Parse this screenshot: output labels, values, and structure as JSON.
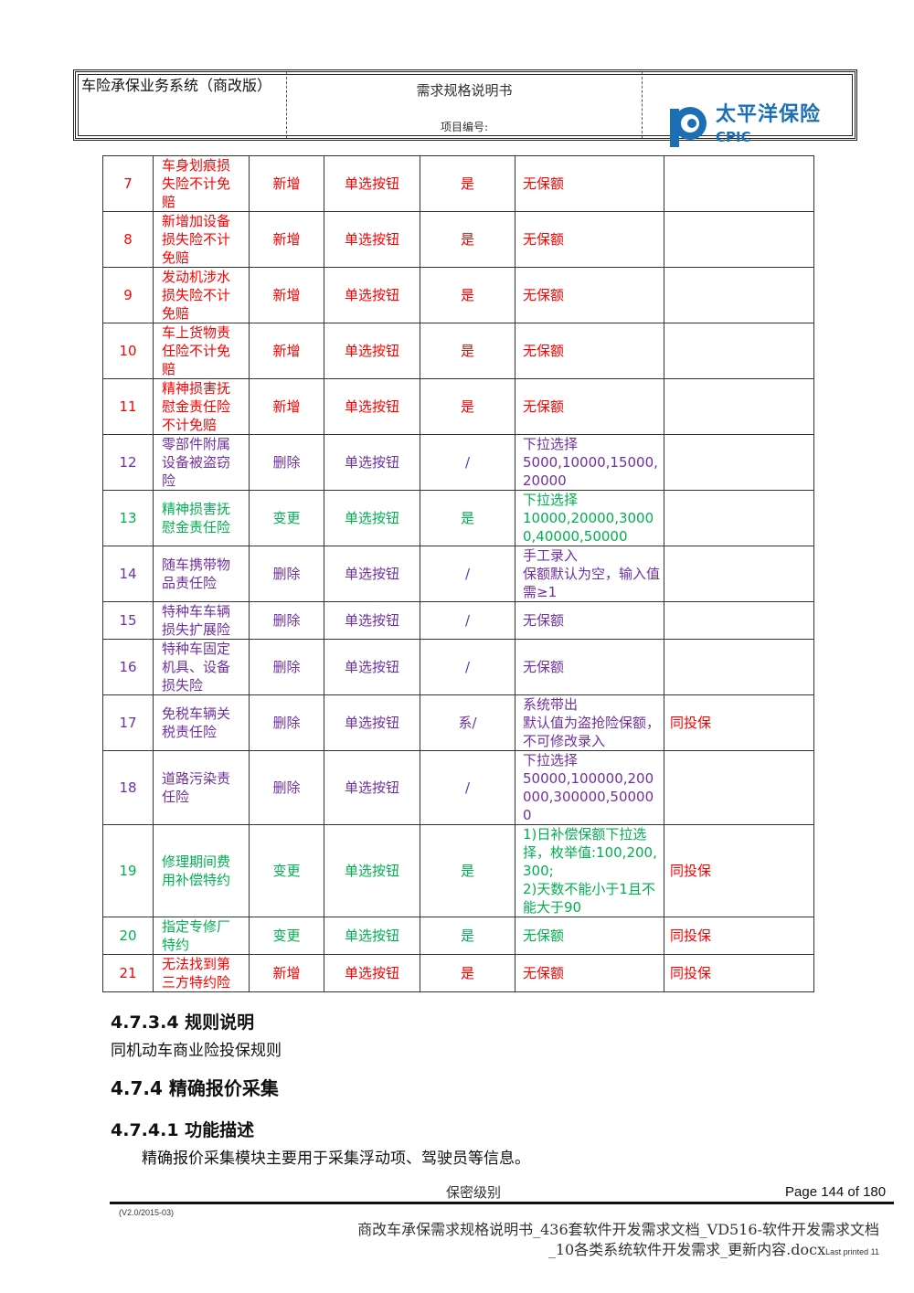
{
  "header": {
    "system": "车险承保业务系统（商改版）",
    "doc_title": "需求规格说明书",
    "project_no_label": "项目编号:",
    "logo_cn": "太平洋保险",
    "logo_en": "CPIC",
    "logo_color": "#1a6fb5"
  },
  "colors": {
    "red": "#ff0000",
    "purple": "#7030a0",
    "green": "#00b050"
  },
  "table": {
    "rows": [
      {
        "no": "7",
        "name": "车身划痕损失险不计免赔",
        "op": "新增",
        "ctrl": "单选按钮",
        "req": "是",
        "amount": "无保额",
        "remark": "",
        "color": "red"
      },
      {
        "no": "8",
        "name": "新增加设备损失险不计免赔",
        "op": "新增",
        "ctrl": "单选按钮",
        "req": "是",
        "amount": "无保额",
        "remark": "",
        "color": "red"
      },
      {
        "no": "9",
        "name": "发动机涉水损失险不计免赔",
        "op": "新增",
        "ctrl": "单选按钮",
        "req": "是",
        "amount": "无保额",
        "remark": "",
        "color": "red"
      },
      {
        "no": "10",
        "name": "车上货物责任险不计免赔",
        "op": "新增",
        "ctrl": "单选按钮",
        "req": "是",
        "amount": "无保额",
        "remark": "",
        "color": "red"
      },
      {
        "no": "11",
        "name": "精神损害抚慰金责任险不计免赔",
        "op": "新增",
        "ctrl": "单选按钮",
        "req": "是",
        "amount": "无保额",
        "remark": "",
        "color": "red"
      },
      {
        "no": "12",
        "name": "零部件附属设备被盗窃险",
        "op": "删除",
        "ctrl": "单选按钮",
        "req": "/",
        "amount": "下拉选择\n5000,10000,15000,20000",
        "remark": "",
        "color": "purple"
      },
      {
        "no": "13",
        "name": "精神损害抚慰金责任险",
        "op": "变更",
        "ctrl": "单选按钮",
        "req": "是",
        "amount": "下拉选择\n10000,20000,30000,40000,50000",
        "remark": "",
        "color": "green"
      },
      {
        "no": "14",
        "name": "随车携带物品责任险",
        "op": "删除",
        "ctrl": "单选按钮",
        "req": "/",
        "amount": "手工录入\n保额默认为空，输入值需≥1",
        "remark": "",
        "color": "purple"
      },
      {
        "no": "15",
        "name": "特种车车辆损失扩展险",
        "op": "删除",
        "ctrl": "单选按钮",
        "req": "/",
        "amount": "无保额",
        "remark": "",
        "color": "purple"
      },
      {
        "no": "16",
        "name": "特种车固定机具、设备损失险",
        "op": "删除",
        "ctrl": "单选按钮",
        "req": "/",
        "amount": "无保额",
        "remark": "",
        "color": "purple"
      },
      {
        "no": "17",
        "name": "免税车辆关税责任险",
        "op": "删除",
        "ctrl": "单选按钮",
        "req": "系/",
        "amount": "系统带出\n默认值为盗抢险保额，不可修改录入",
        "remark": "同投保",
        "color": "purple"
      },
      {
        "no": "18",
        "name": "道路污染责任险",
        "op": "删除",
        "ctrl": "单选按钮",
        "req": "/",
        "amount": "下拉选择\n50000,100000,200000,300000,500000",
        "remark": "",
        "color": "purple"
      },
      {
        "no": "19",
        "name": "修理期间费用补偿特约",
        "op": "变更",
        "ctrl": "单选按钮",
        "req": "是",
        "amount": "1)日补偿保额下拉选择，枚举值:100,200,300;\n2)天数不能小于1且不能大于90",
        "remark": "同投保",
        "color": "green"
      },
      {
        "no": "20",
        "name": "指定专修厂特约",
        "op": "变更",
        "ctrl": "单选按钮",
        "req": "是",
        "amount": "无保额",
        "remark": "同投保",
        "color": "green"
      },
      {
        "no": "21",
        "name": "无法找到第三方特约险",
        "op": "新增",
        "ctrl": "单选按钮",
        "req": "是",
        "amount": "无保额",
        "remark": "同投保",
        "color": "red"
      }
    ]
  },
  "sections": {
    "h1": "4.7.3.4 规则说明",
    "p1": "同机动车商业险投保规则",
    "h2": "4.7.4  精确报价采集",
    "h3": "4.7.4.1 功能描述",
    "p2": "精确报价采集模块主要用于采集浮动项、驾驶员等信息。"
  },
  "footer": {
    "confidential": "保密级别",
    "page": "Page 144 of 180",
    "version": "(V2.0/2015-03)",
    "file_line1": "商改车承保需求规格说明书_436套软件开发需求文档_VD516-软件开发需求文档",
    "file_line2": "_10各类系统软件开发需求_更新内容.docx",
    "last_printed": "Last printed 11"
  }
}
